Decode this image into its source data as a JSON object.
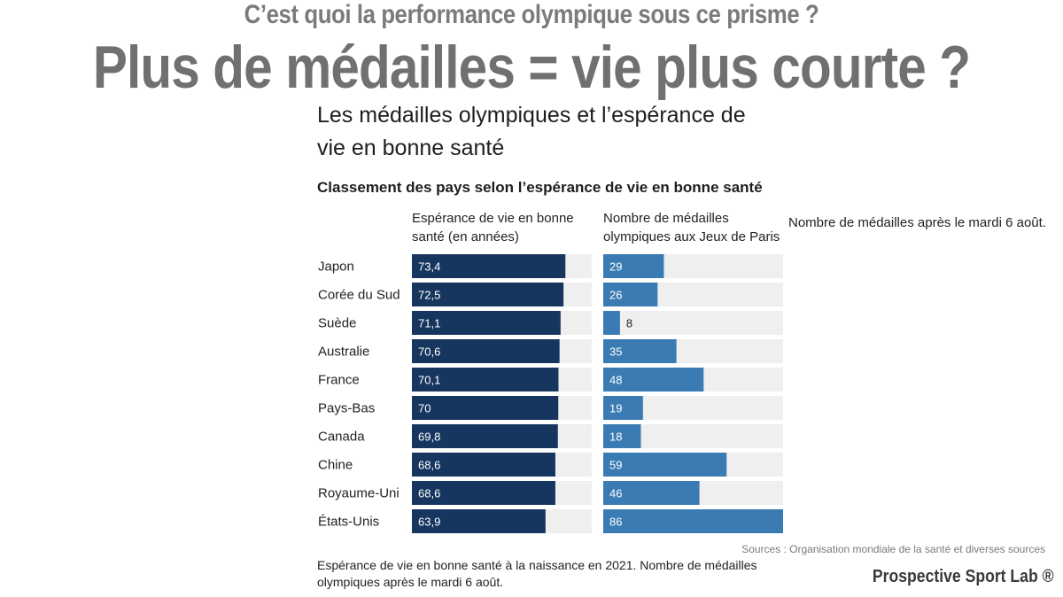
{
  "kicker": "C’est quoi la performance olympique sous ce prisme ?",
  "headline": "Plus de médailles = vie plus courte ?",
  "side_note": "Nombre de médailles après le mardi 6 août.",
  "source": "Sources : Organisation mondiale de la santé et diverses sources",
  "footnote": "Espérance de vie en bonne santé à la naissance en 2021. Nombre de médailles olympiques après le mardi 6 août.",
  "brand": "Prospective Sport Lab ®",
  "colors": {
    "life_bar": "#17365f",
    "medal_bar": "#3a7bb3",
    "track": "#efefef"
  },
  "chart_data": {
    "type": "bar",
    "orientation": "horizontal",
    "title": "Les médailles olympiques et l’espérance de vie en bonne santé",
    "subtitle": "Classement des pays selon l’espérance de vie en bonne santé",
    "categories": [
      "Japon",
      "Corée du Sud",
      "Suède",
      "Australie",
      "France",
      "Pays-Bas",
      "Canada",
      "Chine",
      "Royaume-Uni",
      "États-Unis"
    ],
    "series": [
      {
        "name": "Espérance de vie en bonne santé (en années)",
        "values": [
          73.4,
          72.5,
          71.1,
          70.6,
          70.1,
          70,
          69.8,
          68.6,
          68.6,
          63.9
        ],
        "labels": [
          "73,4",
          "72,5",
          "71,1",
          "70,6",
          "70,1",
          "70",
          "69,8",
          "68,6",
          "68,6",
          "63,9"
        ],
        "xlim": [
          0,
          86
        ]
      },
      {
        "name": "Nombre de médailles olympiques aux Jeux de Paris",
        "values": [
          29,
          26,
          8,
          35,
          48,
          19,
          18,
          59,
          46,
          86
        ],
        "labels": [
          "29",
          "26",
          "8",
          "35",
          "48",
          "19",
          "18",
          "59",
          "46",
          "86"
        ],
        "xlim": [
          0,
          86
        ]
      }
    ],
    "grid": false,
    "legend": "column headers"
  }
}
